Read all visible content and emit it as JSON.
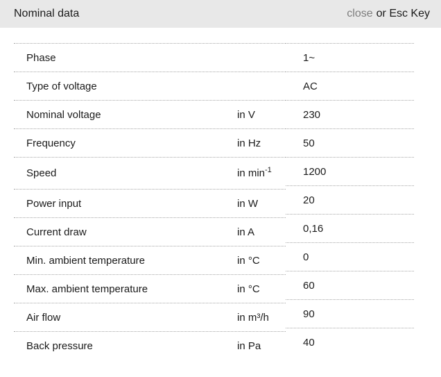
{
  "header": {
    "title": "Nominal data",
    "close_label": "close",
    "esc_text": "or Esc Key"
  },
  "table": {
    "rows": [
      {
        "label": "Phase",
        "unit": "",
        "value": "1~"
      },
      {
        "label": "Type of voltage",
        "unit": "",
        "value": "AC"
      },
      {
        "label": "Nominal voltage",
        "unit": "in V",
        "value": "230"
      },
      {
        "label": "Frequency",
        "unit": "in Hz",
        "value": "50"
      },
      {
        "label": "Speed",
        "unit": "in min",
        "unit_sup": "-1",
        "value": "1200"
      },
      {
        "label": "Power input",
        "unit": "in W",
        "value": "20"
      },
      {
        "label": "Current draw",
        "unit": "in A",
        "value": "0,16"
      },
      {
        "label": "Min. ambient temperature",
        "unit": "in °C",
        "value": "0"
      },
      {
        "label": "Max. ambient temperature",
        "unit": "in °C",
        "value": "60"
      },
      {
        "label": "Air flow",
        "unit": "in m³/h",
        "value": "90"
      },
      {
        "label": "Back pressure",
        "unit": "in Pa",
        "value": "40"
      }
    ]
  },
  "colors": {
    "header_bg": "#e8e8e8",
    "text": "#1a1a1a",
    "close_link": "#7d7d7d",
    "separator": "#a6a6a6"
  }
}
